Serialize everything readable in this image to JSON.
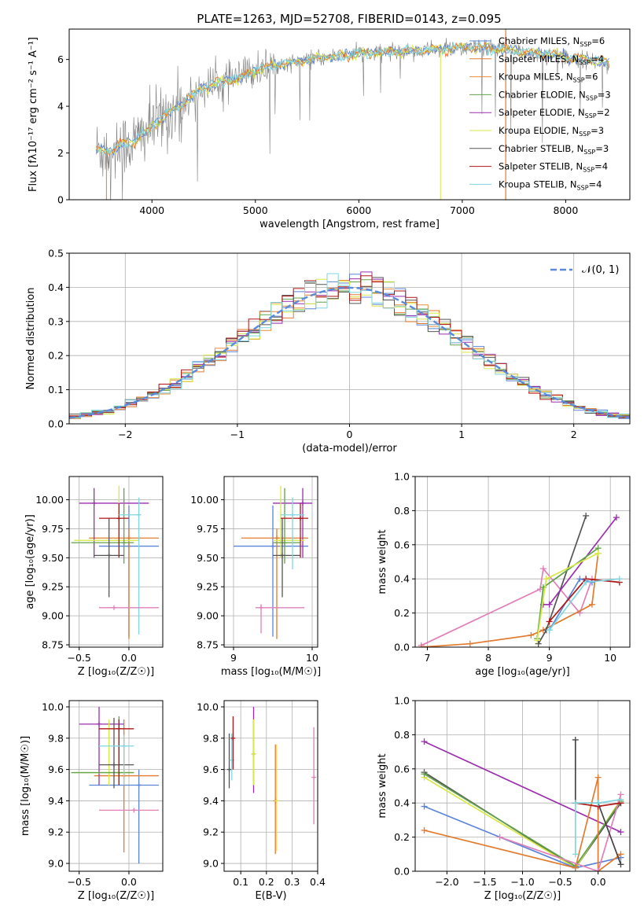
{
  "figure": {
    "title": "PLATE=1263, MJD=52708, FIBERID=0143, z=0.095"
  },
  "palette": {
    "chabrier_miles": "#5b84d8",
    "salpeter_miles": "#e27b2f",
    "kroupa_miles": "#ec8b3b",
    "chabrier_elodie": "#61a24a",
    "salpeter_elodie": "#9b2fae",
    "kroupa_elodie": "#d8e84a",
    "chabrier_stelib": "#555555",
    "salpeter_stelib": "#b01515",
    "kroupa_stelib": "#7fd6e0",
    "pink": "#e07fb8",
    "data_gray": "#808080",
    "gaussian": "#5b8ad8",
    "grid": "#b0b0b0"
  },
  "chart_data": [
    {
      "type": "line",
      "name": "spectrum",
      "title": "PLATE=1263, MJD=52708, FIBERID=0143, z=0.095",
      "xlabel": "wavelength [Angstrom, rest frame]",
      "ylabel": "Flux [fλ10⁻¹⁷ erg cm⁻² s⁻¹ A⁻¹]",
      "xlim": [
        3200,
        8620
      ],
      "ylim": [
        0,
        7.3
      ],
      "xticks": [
        4000,
        5000,
        6000,
        7000,
        8000
      ],
      "yticks": [
        0,
        2,
        4,
        6
      ],
      "grid": false,
      "legend_position": "right",
      "legend": [
        {
          "label": "Chabrier MILES, N",
          "sub": "SSP",
          "suffix": "=6",
          "color": "#5b84d8"
        },
        {
          "label": "Salpeter MILES, N",
          "sub": "SSP",
          "suffix": "=4",
          "color": "#e27b2f"
        },
        {
          "label": "Kroupa MILES, N",
          "sub": "SSP",
          "suffix": "=6",
          "color": "#ec8b3b"
        },
        {
          "label": "Chabrier ELODIE, N",
          "sub": "SSP",
          "suffix": "=3",
          "color": "#61a24a"
        },
        {
          "label": "Salpeter ELODIE, N",
          "sub": "SSP",
          "suffix": "=2",
          "color": "#9b2fae"
        },
        {
          "label": "Kroupa ELODIE, N",
          "sub": "SSP",
          "suffix": "=3",
          "color": "#d8e84a"
        },
        {
          "label": "Chabrier STELIB, N",
          "sub": "SSP",
          "suffix": "=3",
          "color": "#555555"
        },
        {
          "label": "Salpeter STELIB, N",
          "sub": "SSP",
          "suffix": "=4",
          "color": "#b01515"
        },
        {
          "label": "Kroupa STELIB, N",
          "sub": "SSP",
          "suffix": "=4",
          "color": "#7fd6e0"
        }
      ],
      "continuum": [
        [
          3460,
          2.15
        ],
        [
          3600,
          2.05
        ],
        [
          3700,
          2.35
        ],
        [
          3800,
          2.4
        ],
        [
          3900,
          2.75
        ],
        [
          4000,
          3.15
        ],
        [
          4100,
          3.5
        ],
        [
          4200,
          3.8
        ],
        [
          4300,
          4.1
        ],
        [
          4400,
          4.5
        ],
        [
          4500,
          4.8
        ],
        [
          4600,
          4.95
        ],
        [
          4700,
          5.05
        ],
        [
          4800,
          5.15
        ],
        [
          4900,
          5.3
        ],
        [
          5000,
          5.55
        ],
        [
          5200,
          5.75
        ],
        [
          5400,
          5.9
        ],
        [
          5600,
          6.05
        ],
        [
          5800,
          6.15
        ],
        [
          6000,
          6.25
        ],
        [
          6200,
          6.3
        ],
        [
          6400,
          6.35
        ],
        [
          6600,
          6.4
        ],
        [
          6800,
          6.45
        ],
        [
          7000,
          6.5
        ],
        [
          7200,
          6.5
        ],
        [
          7400,
          6.45
        ],
        [
          7600,
          6.3
        ],
        [
          7800,
          6.25
        ],
        [
          8000,
          6.1
        ],
        [
          8200,
          6.0
        ],
        [
          8400,
          5.85
        ]
      ]
    },
    {
      "type": "line",
      "name": "residuals",
      "xlabel": "(data-model)/error",
      "ylabel": "Normed distribution",
      "xlim": [
        -2.5,
        2.5
      ],
      "ylim": [
        0,
        0.5
      ],
      "xticks": [
        -2,
        -1,
        0,
        1,
        2
      ],
      "yticks": [
        0.0,
        0.1,
        0.2,
        0.3,
        0.4,
        0.5
      ],
      "grid": true,
      "legend_position": "top-right",
      "legend": [
        {
          "label": "𝒩(0, 1)",
          "style": "dashed",
          "color": "#5b8ad8"
        }
      ],
      "bin_width": 0.1
    },
    {
      "type": "scatter",
      "name": "age-vs-Z",
      "xlabel": "Z [log₁₀(Z/Z☉)]",
      "ylabel": "age  [log₁₀(age/yr)]",
      "xlim": [
        -0.6,
        0.34
      ],
      "ylim": [
        8.73,
        10.2
      ],
      "xticks": [
        -0.5,
        0.0
      ],
      "yticks": [
        8.75,
        9.0,
        9.25,
        9.5,
        9.75,
        10.0
      ],
      "grid": true,
      "points": [
        {
          "x": 0.0,
          "y": 9.6,
          "xlo": -0.3,
          "xhi": 0.3,
          "ylo": 8.82,
          "yhi": 9.95,
          "color": "#5b84d8"
        },
        {
          "x": 0.0,
          "y": 9.67,
          "xlo": -0.4,
          "xhi": 0.3,
          "ylo": 8.8,
          "yhi": 9.75,
          "color": "#e27b2f"
        },
        {
          "x": -0.35,
          "y": 9.97,
          "xlo": -0.5,
          "xhi": 0.2,
          "ylo": 9.5,
          "yhi": 10.1,
          "color": "#9b2fae"
        },
        {
          "x": -0.1,
          "y": 9.65,
          "xlo": -0.55,
          "xhi": 0.1,
          "ylo": 9.5,
          "yhi": 10.12,
          "color": "#d8e84a"
        },
        {
          "x": -0.05,
          "y": 9.63,
          "xlo": -0.58,
          "xhi": 0.05,
          "ylo": 9.45,
          "yhi": 10.1,
          "color": "#61a24a"
        },
        {
          "x": -0.2,
          "y": 9.52,
          "xlo": -0.35,
          "xhi": -0.05,
          "ylo": 9.16,
          "yhi": 9.84,
          "color": "#555555"
        },
        {
          "x": -0.1,
          "y": 9.84,
          "xlo": -0.3,
          "xhi": 0.0,
          "ylo": 9.5,
          "yhi": 9.97,
          "color": "#b01515"
        },
        {
          "x": 0.1,
          "y": 9.87,
          "xlo": -0.1,
          "xhi": 0.1,
          "ylo": 8.84,
          "yhi": 10.02,
          "color": "#7fd6e0"
        },
        {
          "x": -0.15,
          "y": 9.07,
          "xlo": -0.3,
          "xhi": 0.3,
          "ylo": 9.07,
          "yhi": 9.07,
          "color": "#e07fb8"
        }
      ]
    },
    {
      "type": "scatter",
      "name": "age-vs-mass",
      "xlabel": "mass [log₁₀(M/M☉)]",
      "ylabel": "",
      "xlim": [
        8.88,
        10.07
      ],
      "ylim": [
        8.73,
        10.2
      ],
      "xticks": [
        9,
        10
      ],
      "yticks": [
        8.75,
        9.0,
        9.25,
        9.5,
        9.75,
        10.0
      ],
      "grid": true,
      "points": [
        {
          "x": 9.5,
          "y": 9.6,
          "xlo": 9.0,
          "xhi": 9.95,
          "ylo": 8.82,
          "yhi": 9.95,
          "color": "#5b84d8"
        },
        {
          "x": 9.55,
          "y": 9.67,
          "xlo": 9.1,
          "xhi": 9.95,
          "ylo": 8.8,
          "yhi": 9.75,
          "color": "#e27b2f"
        },
        {
          "x": 9.88,
          "y": 9.97,
          "xlo": 9.5,
          "xhi": 10.0,
          "ylo": 9.5,
          "yhi": 10.1,
          "color": "#9b2fae"
        },
        {
          "x": 9.6,
          "y": 9.65,
          "xlo": 9.5,
          "xhi": 9.9,
          "ylo": 9.5,
          "yhi": 10.12,
          "color": "#d8e84a"
        },
        {
          "x": 9.65,
          "y": 9.63,
          "xlo": 9.5,
          "xhi": 9.85,
          "ylo": 9.45,
          "yhi": 10.1,
          "color": "#61a24a"
        },
        {
          "x": 9.62,
          "y": 9.52,
          "xlo": 9.5,
          "xhi": 9.85,
          "ylo": 9.16,
          "yhi": 9.84,
          "color": "#555555"
        },
        {
          "x": 9.85,
          "y": 9.84,
          "xlo": 9.6,
          "xhi": 9.95,
          "ylo": 9.5,
          "yhi": 9.97,
          "color": "#b01515"
        },
        {
          "x": 9.75,
          "y": 9.87,
          "xlo": 9.6,
          "xhi": 9.9,
          "ylo": 9.4,
          "yhi": 10.02,
          "color": "#7fd6e0"
        },
        {
          "x": 9.35,
          "y": 9.07,
          "xlo": 9.28,
          "xhi": 9.9,
          "ylo": 8.85,
          "yhi": 9.1,
          "color": "#e07fb8"
        }
      ]
    },
    {
      "type": "line",
      "name": "mass-weight-vs-age",
      "xlabel": "age  [log₁₀(age/yr)]",
      "ylabel": "mass weight",
      "xlim": [
        6.8,
        10.32
      ],
      "ylim": [
        0,
        1.0
      ],
      "xticks": [
        7,
        8,
        9,
        10
      ],
      "yticks": [
        0.0,
        0.2,
        0.4,
        0.6,
        0.8,
        1.0
      ],
      "grid": true,
      "series": [
        {
          "color": "#e07fb8",
          "points": [
            [
              6.9,
              0.01
            ],
            [
              8.85,
              0.34
            ],
            [
              8.9,
              0.46
            ],
            [
              9.5,
              0.2
            ],
            [
              9.7,
              0.4
            ]
          ]
        },
        {
          "color": "#e27b2f",
          "points": [
            [
              6.9,
              0.0
            ],
            [
              7.7,
              0.02
            ],
            [
              8.7,
              0.07
            ],
            [
              8.9,
              0.1
            ],
            [
              9.7,
              0.25
            ],
            [
              9.8,
              0.55
            ]
          ]
        },
        {
          "color": "#555555",
          "points": [
            [
              8.82,
              0.02
            ],
            [
              8.95,
              0.1
            ],
            [
              9.6,
              0.77
            ]
          ]
        },
        {
          "color": "#9b2fae",
          "points": [
            [
              8.9,
              0.25
            ],
            [
              9.0,
              0.25
            ],
            [
              10.1,
              0.76
            ]
          ]
        },
        {
          "color": "#61a24a",
          "points": [
            [
              8.8,
              0.05
            ],
            [
              8.9,
              0.35
            ],
            [
              9.8,
              0.58
            ]
          ]
        },
        {
          "color": "#d8e84a",
          "points": [
            [
              8.8,
              0.04
            ],
            [
              8.95,
              0.4
            ],
            [
              9.8,
              0.55
            ]
          ]
        },
        {
          "color": "#5b84d8",
          "points": [
            [
              9.0,
              0.1
            ],
            [
              9.5,
              0.4
            ],
            [
              9.7,
              0.38
            ]
          ]
        },
        {
          "color": "#b01515",
          "points": [
            [
              9.0,
              0.15
            ],
            [
              9.6,
              0.4
            ],
            [
              10.15,
              0.38
            ]
          ]
        },
        {
          "color": "#7fd6e0",
          "points": [
            [
              9.0,
              0.1
            ],
            [
              9.6,
              0.38
            ],
            [
              10.15,
              0.4
            ]
          ]
        }
      ]
    },
    {
      "type": "scatter",
      "name": "mass-vs-Z",
      "xlabel": "Z [log₁₀(Z/Z☉)]",
      "ylabel": "mass [log₁₀(M/M☉)]",
      "xlim": [
        -0.6,
        0.34
      ],
      "ylim": [
        8.95,
        10.04
      ],
      "xticks": [
        -0.5,
        0.0
      ],
      "yticks": [
        9.0,
        9.2,
        9.4,
        9.6,
        9.8,
        10.0
      ],
      "grid": true,
      "points": [
        {
          "x": 0.1,
          "y": 9.5,
          "xlo": -0.4,
          "xhi": 0.3,
          "ylo": 9.0,
          "yhi": 9.6,
          "color": "#5b84d8"
        },
        {
          "x": -0.05,
          "y": 9.56,
          "xlo": -0.35,
          "xhi": 0.3,
          "ylo": 9.07,
          "yhi": 9.92,
          "color": "#e27b2f"
        },
        {
          "x": -0.3,
          "y": 9.89,
          "xlo": -0.5,
          "xhi": -0.05,
          "ylo": 9.5,
          "yhi": 10.0,
          "color": "#9b2fae"
        },
        {
          "x": -0.2,
          "y": 9.58,
          "xlo": -0.55,
          "xhi": 0.05,
          "ylo": 9.5,
          "yhi": 9.92,
          "color": "#d8e84a"
        },
        {
          "x": -0.1,
          "y": 9.58,
          "xlo": -0.58,
          "xhi": 0.05,
          "ylo": 9.5,
          "yhi": 9.94,
          "color": "#61a24a"
        },
        {
          "x": -0.15,
          "y": 9.63,
          "xlo": -0.3,
          "xhi": 0.05,
          "ylo": 9.48,
          "yhi": 9.93,
          "color": "#555555"
        },
        {
          "x": -0.1,
          "y": 9.86,
          "xlo": -0.3,
          "xhi": 0.05,
          "ylo": 9.5,
          "yhi": 9.92,
          "color": "#b01515"
        },
        {
          "x": -0.05,
          "y": 9.75,
          "xlo": -0.3,
          "xhi": 0.05,
          "ylo": 9.5,
          "yhi": 9.82,
          "color": "#7fd6e0"
        },
        {
          "x": 0.05,
          "y": 9.34,
          "xlo": -0.3,
          "xhi": 0.3,
          "ylo": 9.34,
          "yhi": 9.34,
          "color": "#e07fb8"
        }
      ]
    },
    {
      "type": "scatter",
      "name": "mass-vs-EBV",
      "xlabel": "E(B-V)",
      "ylabel": "",
      "xlim": [
        0.035,
        0.4
      ],
      "ylim": [
        8.95,
        10.04
      ],
      "xticks": [
        0.1,
        0.2,
        0.3,
        0.4
      ],
      "yticks": [
        9.0,
        9.2,
        9.4,
        9.6,
        9.8,
        10.0
      ],
      "grid": true,
      "points": [
        {
          "x": 0.055,
          "y": 9.6,
          "ylo": 9.48,
          "yhi": 9.83,
          "color": "#555555"
        },
        {
          "x": 0.065,
          "y": 9.66,
          "ylo": 9.53,
          "yhi": 9.83,
          "color": "#7fd6e0"
        },
        {
          "x": 0.07,
          "y": 9.8,
          "ylo": 9.6,
          "yhi": 9.94,
          "color": "#b01515"
        },
        {
          "x": 0.15,
          "y": 9.7,
          "ylo": 9.45,
          "yhi": 10.0,
          "color": "#9b2fae"
        },
        {
          "x": 0.15,
          "y": 9.7,
          "ylo": 9.5,
          "yhi": 9.92,
          "color": "#d8e84a"
        },
        {
          "x": 0.235,
          "y": 9.4,
          "ylo": 9.06,
          "yhi": 9.76,
          "color": "#e27b2f"
        },
        {
          "x": 0.24,
          "y": 9.4,
          "ylo": 9.08,
          "yhi": 9.76,
          "color": "#d8e84a"
        },
        {
          "x": 0.385,
          "y": 9.55,
          "ylo": 9.25,
          "yhi": 9.87,
          "color": "#e07fb8"
        }
      ]
    },
    {
      "type": "line",
      "name": "mass-weight-vs-Z",
      "xlabel": "Z [log₁₀(Z/Z☉)]",
      "ylabel": "mass weight",
      "xlim": [
        -2.42,
        0.42
      ],
      "ylim": [
        0,
        1.0
      ],
      "xticks": [
        -2.0,
        -1.5,
        -1.0,
        -0.5,
        0.0
      ],
      "yticks": [
        0.0,
        0.2,
        0.4,
        0.6,
        0.8,
        1.0
      ],
      "grid": true,
      "series": [
        {
          "color": "#9b2fae",
          "points": [
            [
              -2.3,
              0.76
            ],
            [
              0.3,
              0.23
            ]
          ]
        },
        {
          "color": "#555555",
          "points": [
            [
              -2.3,
              0.58
            ],
            [
              -0.3,
              0.02
            ],
            [
              0.3,
              0.4
            ]
          ]
        },
        {
          "color": "#d8e84a",
          "points": [
            [
              -2.3,
              0.55
            ],
            [
              -0.3,
              0.02
            ],
            [
              0.3,
              0.42
            ]
          ]
        },
        {
          "color": "#61a24a",
          "points": [
            [
              -2.3,
              0.57
            ],
            [
              -0.3,
              0.03
            ],
            [
              0.3,
              0.41
            ]
          ]
        },
        {
          "color": "#5b84d8",
          "points": [
            [
              -2.3,
              0.38
            ],
            [
              -0.3,
              0.02
            ],
            [
              0.3,
              0.08
            ]
          ]
        },
        {
          "color": "#e27b2f",
          "points": [
            [
              -2.3,
              0.24
            ],
            [
              -0.3,
              0.02
            ],
            [
              0.0,
              0.55
            ],
            [
              0.0,
              0.0
            ],
            [
              0.3,
              0.1
            ]
          ]
        },
        {
          "color": "#e07fb8",
          "points": [
            [
              -1.3,
              0.2
            ],
            [
              0.0,
              0.0
            ],
            [
              0.3,
              0.45
            ]
          ]
        },
        {
          "color": "#444444",
          "points": [
            [
              -0.3,
              0.77
            ],
            [
              -0.3,
              0.4
            ],
            [
              0.0,
              0.4
            ],
            [
              0.3,
              0.04
            ]
          ]
        },
        {
          "color": "#b01515",
          "points": [
            [
              -0.3,
              0.4
            ],
            [
              0.0,
              0.38
            ],
            [
              0.3,
              0.4
            ]
          ]
        },
        {
          "color": "#7fd6e0",
          "points": [
            [
              -0.3,
              0.1
            ],
            [
              -0.3,
              0.4
            ],
            [
              0.0,
              0.4
            ],
            [
              0.3,
              0.42
            ]
          ]
        }
      ]
    }
  ]
}
